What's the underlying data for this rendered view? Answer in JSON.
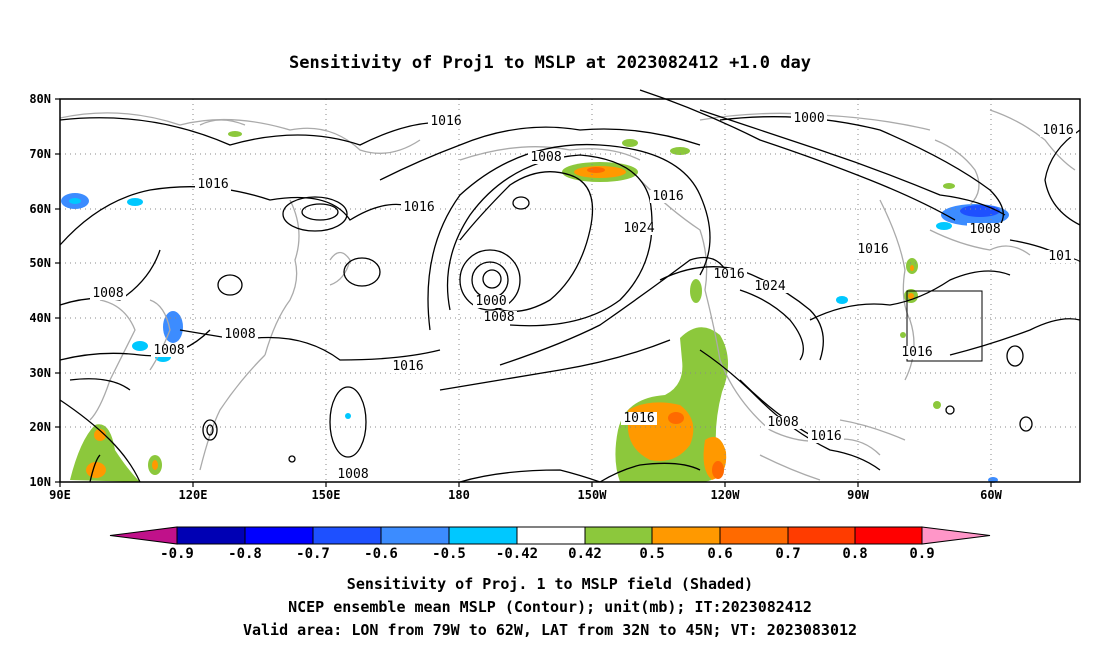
{
  "title": "Sensitivity of Proj1 to MSLP at 2023082412 +1.0 day",
  "axes": {
    "lat_ticks": [
      "80N",
      "70N",
      "60N",
      "50N",
      "40N",
      "30N",
      "20N",
      "10N"
    ],
    "lon_ticks": [
      "90E",
      "120E",
      "150E",
      "180",
      "150W",
      "120W",
      "90W",
      "60W"
    ]
  },
  "map": {
    "lon_range": [
      "90E",
      "30W"
    ],
    "lat_range": [
      "10N",
      "80N"
    ],
    "grid": true,
    "coastline_color": "#aaaaaa",
    "contour_color": "#000000",
    "contour_labels": [
      "1016",
      "1000",
      "1016",
      "1008",
      "1016",
      "1016",
      "1016",
      "1024",
      "1016",
      "1008",
      "1016",
      "1024",
      "1008",
      "1008",
      "1000",
      "1008",
      "1008",
      "1016",
      "1016",
      "1016",
      "1008",
      "1016",
      "1008",
      "101"
    ],
    "valid_box": {
      "lon": [
        "79W",
        "62W"
      ],
      "lat": [
        "32N",
        "45N"
      ]
    }
  },
  "colorbar": {
    "colors": [
      "#c0118a",
      "#0000b4",
      "#0000ff",
      "#1e50ff",
      "#3c8cff",
      "#00c8ff",
      "#ffffff",
      "#8cc83c",
      "#ff9900",
      "#ff6a00",
      "#ff3c00",
      "#ff0000",
      "#ff96c8"
    ],
    "labels": [
      "-0.9",
      "-0.8",
      "-0.7",
      "-0.6",
      "-0.5",
      "-0.42",
      "0.42",
      "0.5",
      "0.6",
      "0.7",
      "0.8",
      "0.9"
    ]
  },
  "captions": [
    "Sensitivity of Proj. 1 to MSLP field (Shaded)",
    "NCEP ensemble mean MSLP (Contour); unit(mb); IT:2023082412",
    "Valid area: LON from 79W to 62W, LAT from 32N to 45N; VT: 2023083012"
  ]
}
